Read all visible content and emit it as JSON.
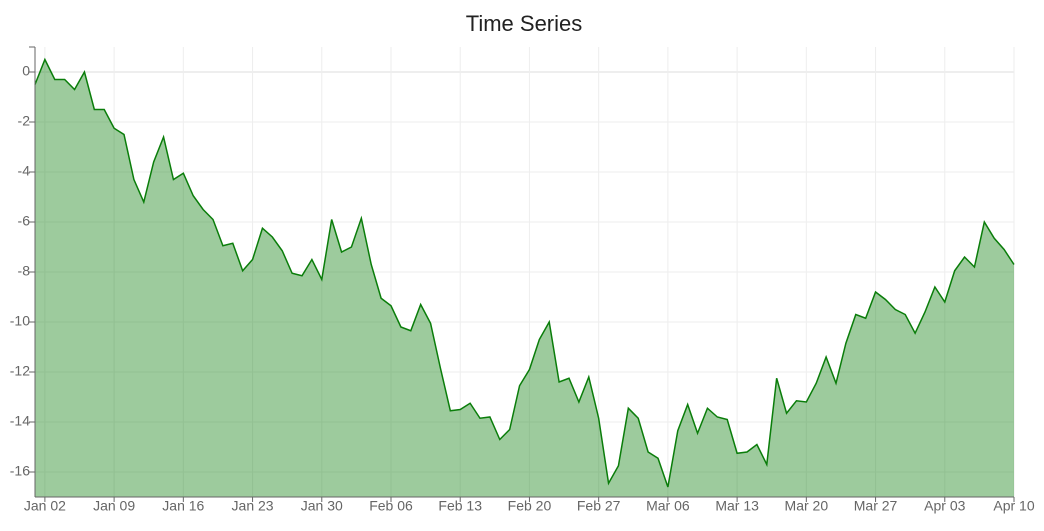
{
  "chart_data": {
    "type": "area",
    "title": "Time Series",
    "categories": [
      null,
      "Jan 02",
      null,
      null,
      null,
      null,
      null,
      null,
      "Jan 09",
      null,
      null,
      null,
      null,
      null,
      null,
      "Jan 16",
      null,
      null,
      null,
      null,
      null,
      null,
      "Jan 23",
      null,
      null,
      null,
      null,
      null,
      null,
      "Jan 30",
      null,
      null,
      null,
      null,
      null,
      null,
      "Feb 06",
      null,
      null,
      null,
      null,
      null,
      null,
      "Feb 13",
      null,
      null,
      null,
      null,
      null,
      null,
      "Feb 20",
      null,
      null,
      null,
      null,
      null,
      null,
      "Feb 27",
      null,
      null,
      null,
      null,
      null,
      null,
      "Mar 06",
      null,
      null,
      null,
      null,
      null,
      null,
      "Mar 13",
      null,
      null,
      null,
      null,
      null,
      null,
      "Mar 20",
      null,
      null,
      null,
      null,
      null,
      null,
      "Mar 27",
      null,
      null,
      null,
      null,
      null,
      null,
      "Apr 03",
      null,
      null,
      null,
      null,
      null,
      null,
      "Apr 10"
    ],
    "values": [
      -0.5,
      0.5,
      -0.3,
      -0.3,
      -0.7,
      0,
      -1.5,
      -1.5,
      -2.25,
      -2.5,
      -4.3,
      -5.2,
      -3.6,
      -2.6,
      -4.3,
      -4.05,
      -4.95,
      -5.5,
      -5.9,
      -6.95,
      -6.85,
      -7.95,
      -7.5,
      -6.25,
      -6.6,
      -7.15,
      -8.05,
      -8.15,
      -7.5,
      -8.3,
      -5.9,
      -7.2,
      -7.0,
      -5.85,
      -7.7,
      -9.05,
      -9.35,
      -10.2,
      -10.35,
      -9.3,
      -10.05,
      -11.85,
      -13.55,
      -13.5,
      -13.25,
      -13.85,
      -13.8,
      -14.7,
      -14.3,
      -12.55,
      -11.9,
      -10.7,
      -10.0,
      -12.4,
      -12.25,
      -13.2,
      -12.2,
      -13.85,
      -16.45,
      -15.75,
      -13.45,
      -13.85,
      -15.2,
      -15.45,
      -16.6,
      -14.35,
      -13.3,
      -14.45,
      -13.45,
      -13.8,
      -13.9,
      -15.25,
      -15.2,
      -14.9,
      -15.7,
      -12.25,
      -13.65,
      -13.15,
      -13.2,
      -12.45,
      -11.4,
      -12.45,
      -10.85,
      -9.7,
      -9.85,
      -8.8,
      -9.1,
      -9.5,
      -9.7,
      -10.45,
      -9.6,
      -8.6,
      -9.2,
      -7.95,
      -7.4,
      -7.8,
      -6.0,
      -6.65,
      -7.1,
      -7.7
    ],
    "color": "#0a7d0a",
    "ylim": [
      -17,
      1
    ],
    "yticks": [
      -16,
      -14,
      -12,
      -10,
      -8,
      -6,
      -4,
      -2,
      0
    ],
    "grid": true
  }
}
